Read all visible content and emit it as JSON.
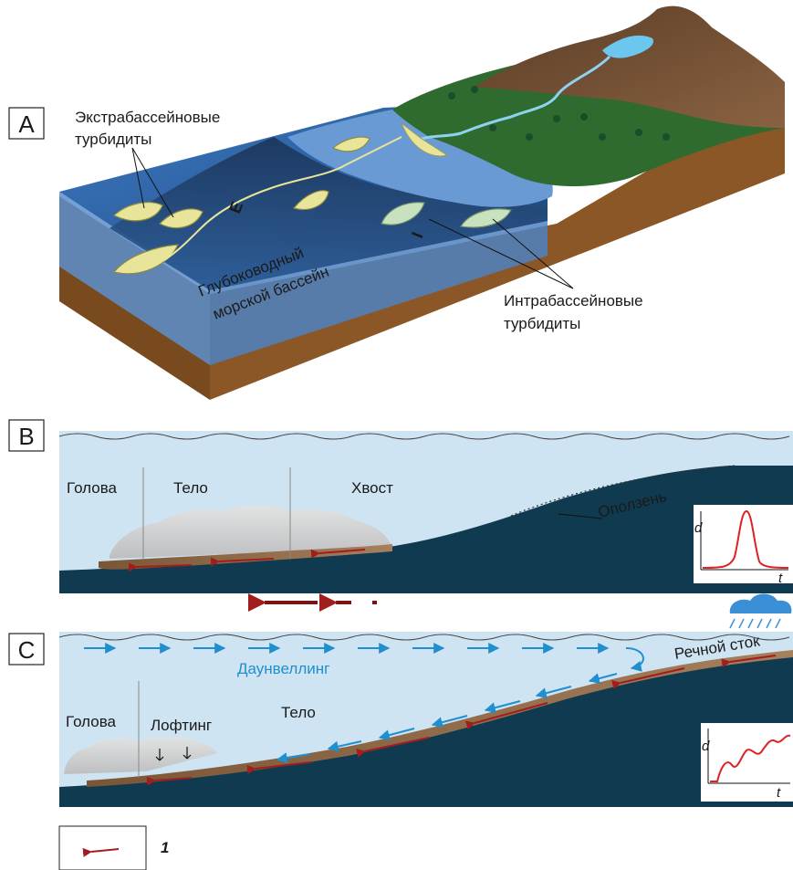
{
  "panels": {
    "a": {
      "letter": "A",
      "extra_line1": "Экстрабассейновые",
      "extra_line2": "турбидиты",
      "basin_line1": "Глубоководный",
      "basin_line2": "морской бассейн",
      "intra_line1": "Интрабассейновые",
      "intra_line2": "турбидиты",
      "marker_e": "E",
      "marker_i": "I"
    },
    "b": {
      "letter": "B",
      "head": "Голова",
      "body": "Тело",
      "tail": "Хвост",
      "landslide": "Оползень",
      "inset_y": "d",
      "inset_x": "t"
    },
    "c": {
      "letter": "C",
      "downwelling": "Даунвеллинг",
      "river": "Речной сток",
      "head": "Голова",
      "lofting": "Лофтинг",
      "body": "Тело",
      "inset_y": "d",
      "inset_x": "t"
    }
  },
  "legend": {
    "label": "1"
  },
  "colors": {
    "sea_shallow": "#4a7fc0",
    "sea_deep": "#1e3a5f",
    "land_green": "#2f6b2f",
    "mountain_brown": "#6b4a2e",
    "crust_brown": "#7a4a1f",
    "water_light": "#cfe4f2",
    "seafloor_dark": "#0f3a4f",
    "arrow_red": "#a21d1d",
    "arrow_blue": "#1f8fcf",
    "fan_yellow": "#e8e59a",
    "fan_green": "#c8e2c0"
  }
}
